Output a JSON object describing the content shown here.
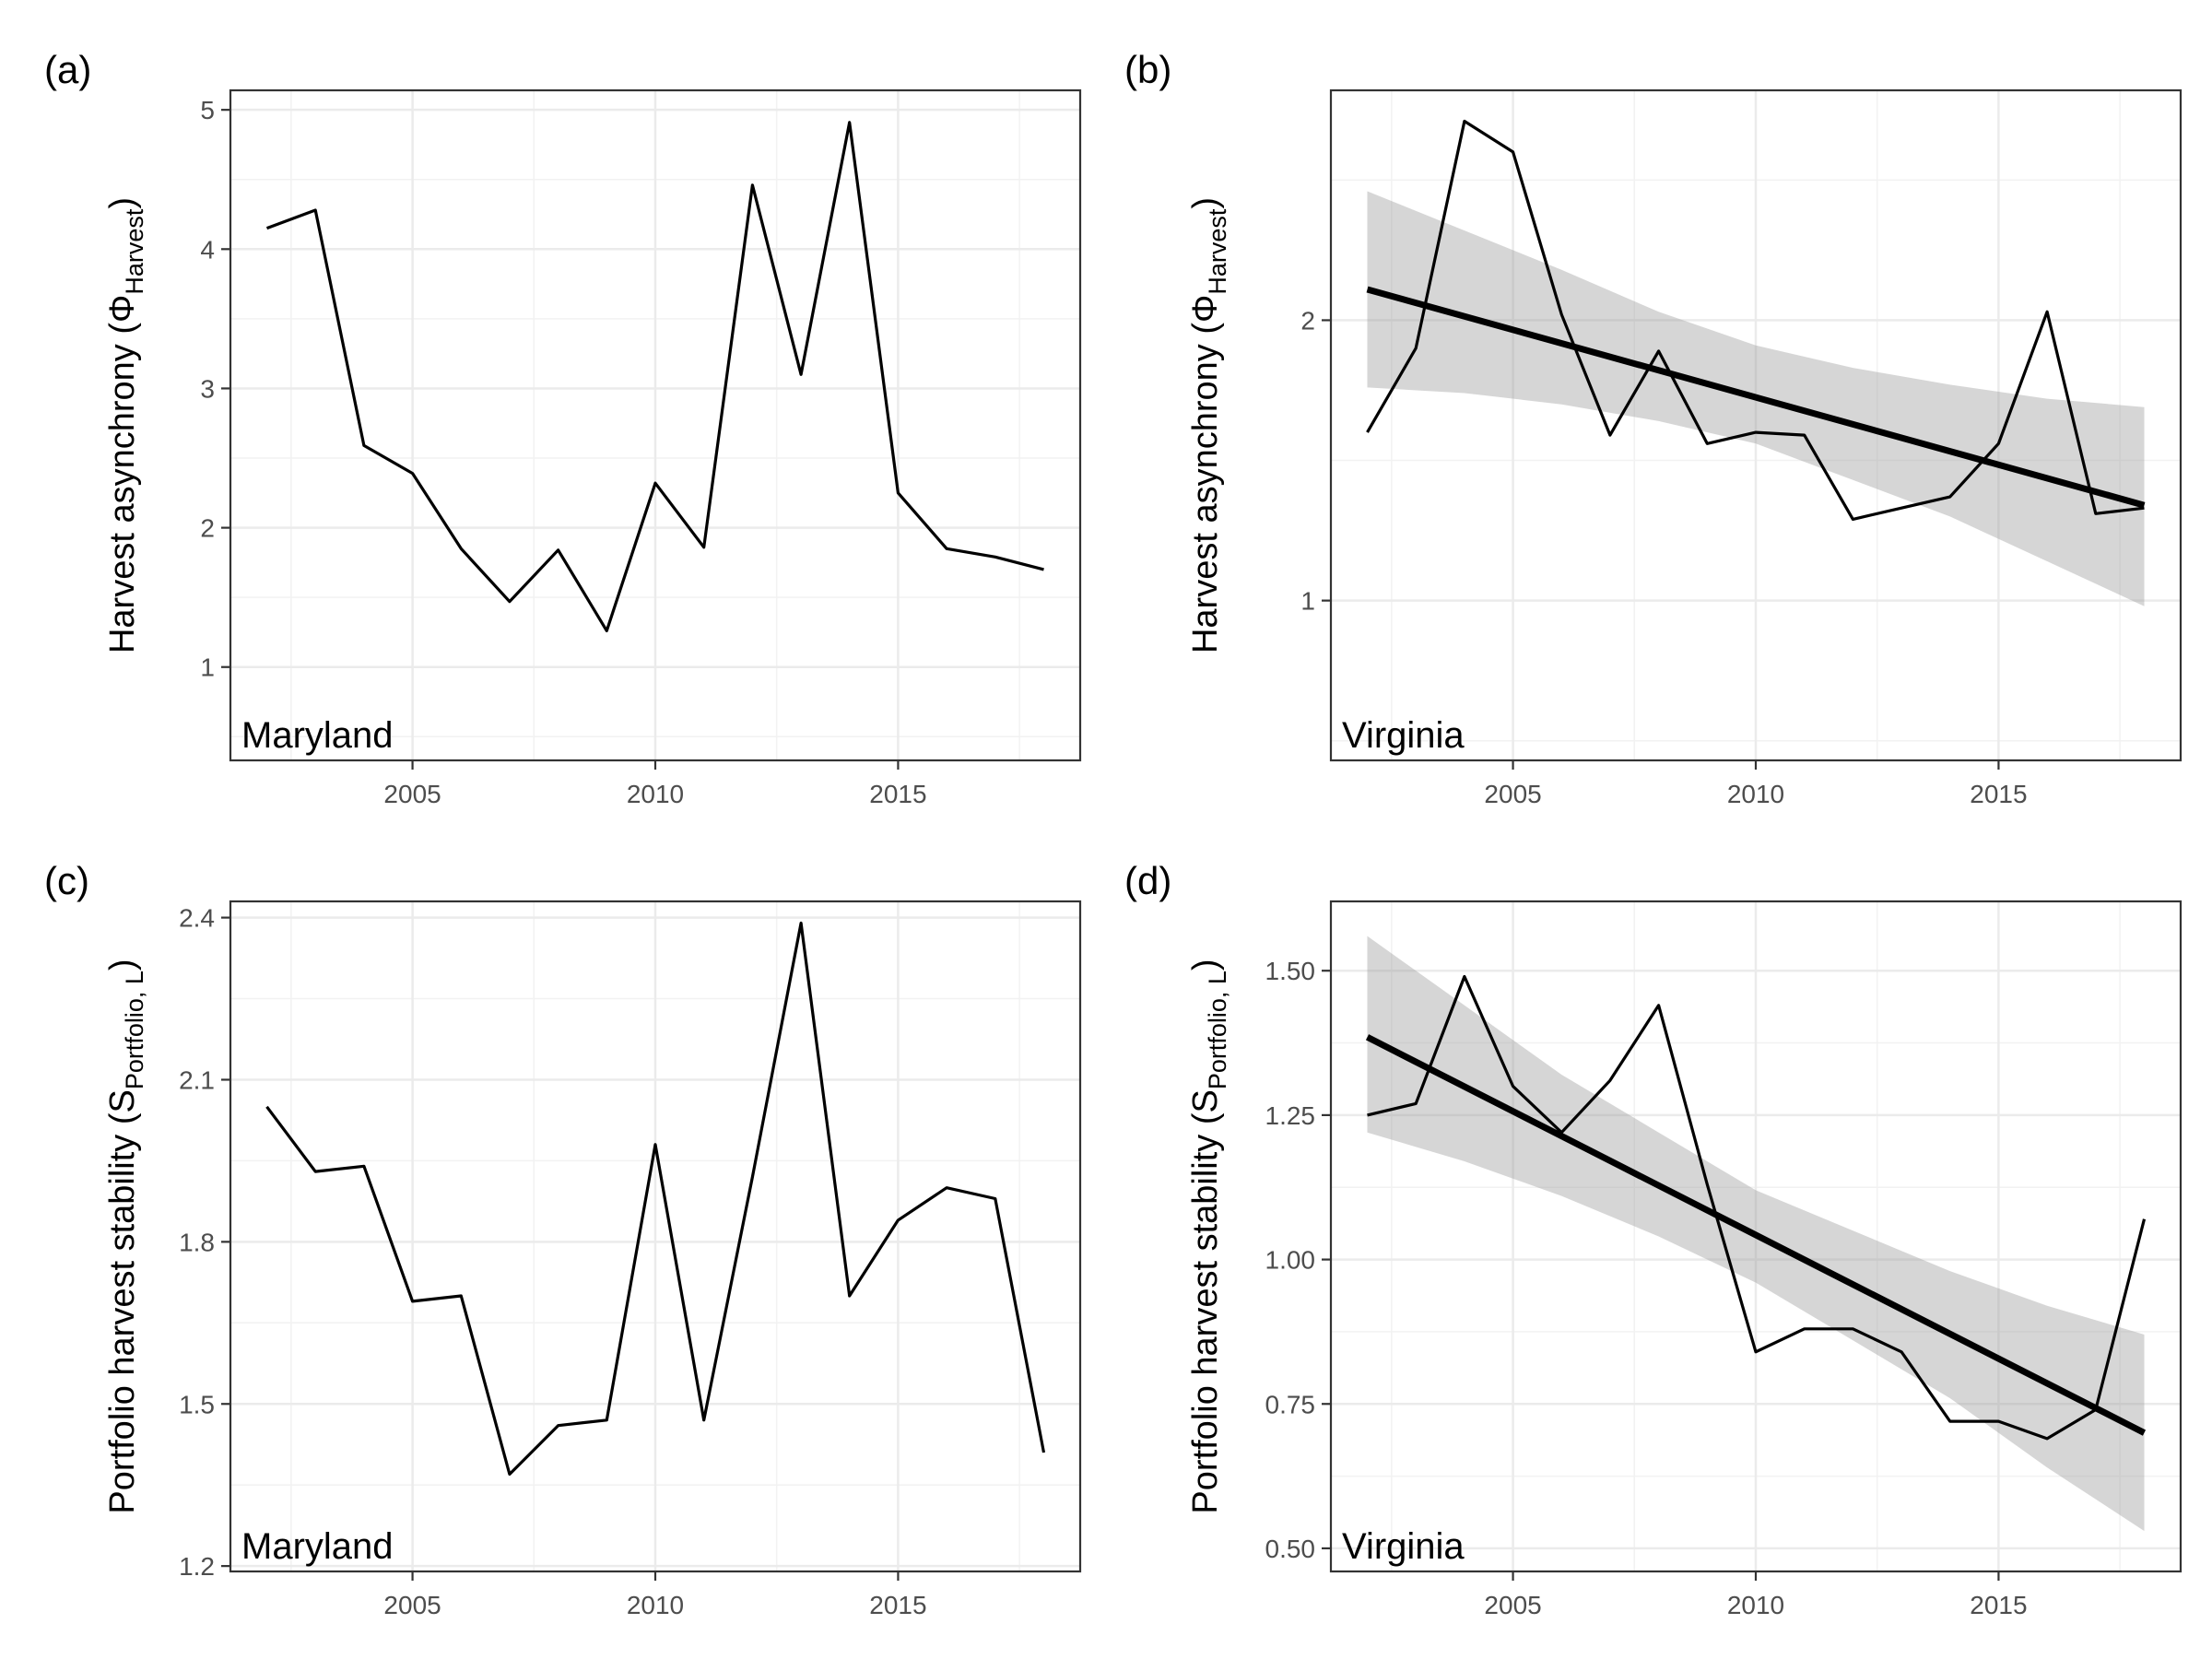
{
  "chart_data": [
    {
      "id": "a",
      "type": "line",
      "panel_label": "(a)",
      "region_label": "Maryland",
      "ylabel_main": "Harvest asynchrony (Φ",
      "ylabel_sub": "Harvest",
      "ylabel_end": ")",
      "x": [
        2002,
        2003,
        2004,
        2005,
        2006,
        2007,
        2008,
        2009,
        2010,
        2011,
        2012,
        2013,
        2014,
        2015,
        2016,
        2017,
        2018
      ],
      "series": [
        {
          "values": [
            4.15,
            4.28,
            2.59,
            2.39,
            1.85,
            1.47,
            1.84,
            1.26,
            2.32,
            1.86,
            4.46,
            3.1,
            4.91,
            2.25,
            1.85,
            1.79,
            1.7
          ]
        }
      ],
      "xlim": [
        2001.25,
        2018.75
      ],
      "ylim": [
        0.33,
        5.14
      ],
      "x_ticks": [
        2005,
        2010,
        2015
      ],
      "y_ticks": [
        1,
        2,
        3,
        4,
        5
      ],
      "x_tick_labels": [
        "2005",
        "2010",
        "2015"
      ],
      "y_tick_labels": [
        "1",
        "2",
        "3",
        "4",
        "5"
      ],
      "trend": null,
      "grid": true
    },
    {
      "id": "b",
      "type": "line",
      "panel_label": "(b)",
      "region_label": "Virginia",
      "ylabel_main": "Harvest asynchrony (Φ",
      "ylabel_sub": "Harvest",
      "ylabel_end": ")",
      "x": [
        2002,
        2003,
        2004,
        2005,
        2006,
        2007,
        2008,
        2009,
        2010,
        2011,
        2012,
        2013,
        2014,
        2015,
        2016,
        2017,
        2018
      ],
      "series": [
        {
          "values": [
            1.6,
            1.9,
            2.71,
            2.6,
            2.02,
            1.59,
            1.89,
            1.56,
            1.6,
            1.59,
            1.29,
            1.33,
            1.37,
            1.56,
            2.03,
            1.31,
            1.33
          ]
        }
      ],
      "xlim": [
        2001.25,
        2018.75
      ],
      "ylim": [
        0.43,
        2.82
      ],
      "x_ticks": [
        2005,
        2010,
        2015
      ],
      "y_ticks": [
        1,
        2
      ],
      "x_tick_labels": [
        "2005",
        "2010",
        "2015"
      ],
      "y_tick_labels": [
        "1",
        "2"
      ],
      "trend": {
        "start": [
          2002,
          2.11
        ],
        "end": [
          2018,
          1.34
        ],
        "band_x": [
          2002,
          2004,
          2006,
          2008,
          2010,
          2012,
          2014,
          2016,
          2018
        ],
        "band_upper": [
          2.46,
          2.32,
          2.18,
          2.03,
          1.91,
          1.83,
          1.77,
          1.72,
          1.69
        ],
        "band_lower": [
          1.76,
          1.74,
          1.7,
          1.64,
          1.56,
          1.43,
          1.3,
          1.14,
          0.98
        ]
      },
      "grid": true
    },
    {
      "id": "c",
      "type": "line",
      "panel_label": "(c)",
      "region_label": "Maryland",
      "ylabel_main": "Portfolio harvest stability (S",
      "ylabel_sub": "Portfolio, L",
      "ylabel_end": ")",
      "x": [
        2002,
        2003,
        2004,
        2005,
        2006,
        2007,
        2008,
        2009,
        2010,
        2011,
        2012,
        2013,
        2014,
        2015,
        2016,
        2017,
        2018
      ],
      "series": [
        {
          "values": [
            2.05,
            1.93,
            1.94,
            1.69,
            1.7,
            1.37,
            1.46,
            1.47,
            1.98,
            1.47,
            1.92,
            2.39,
            1.7,
            1.84,
            1.9,
            1.88,
            1.41
          ]
        }
      ],
      "xlim": [
        2001.25,
        2018.75
      ],
      "ylim": [
        1.19,
        2.43
      ],
      "x_ticks": [
        2005,
        2010,
        2015
      ],
      "y_ticks": [
        1.2,
        1.5,
        1.8,
        2.1,
        2.4
      ],
      "x_tick_labels": [
        "2005",
        "2010",
        "2015"
      ],
      "y_tick_labels": [
        "1.2",
        "1.5",
        "1.8",
        "2.1",
        "2.4"
      ],
      "trend": null,
      "grid": true
    },
    {
      "id": "d",
      "type": "line",
      "panel_label": "(d)",
      "region_label": "Virginia",
      "ylabel_main": "Portfolio harvest stability (S",
      "ylabel_sub": "Portfolio, L",
      "ylabel_end": ")",
      "x": [
        2002,
        2003,
        2004,
        2005,
        2006,
        2007,
        2008,
        2009,
        2010,
        2011,
        2012,
        2013,
        2014,
        2015,
        2016,
        2017,
        2018
      ],
      "series": [
        {
          "values": [
            1.25,
            1.27,
            1.49,
            1.3,
            1.22,
            1.31,
            1.44,
            1.13,
            0.84,
            0.88,
            0.88,
            0.84,
            0.72,
            0.72,
            0.69,
            0.74,
            1.07
          ]
        }
      ],
      "xlim": [
        2001.25,
        2018.75
      ],
      "ylim": [
        0.46,
        1.62
      ],
      "x_ticks": [
        2005,
        2010,
        2015
      ],
      "y_ticks": [
        0.5,
        0.75,
        1.0,
        1.25,
        1.5
      ],
      "x_tick_labels": [
        "2005",
        "2010",
        "2015"
      ],
      "y_tick_labels": [
        "0.50",
        "0.75",
        "1.00",
        "1.25",
        "1.50"
      ],
      "trend": {
        "start": [
          2002,
          1.385
        ],
        "end": [
          2018,
          0.7
        ],
        "band_x": [
          2002,
          2004,
          2006,
          2008,
          2010,
          2012,
          2014,
          2016,
          2018
        ],
        "band_upper": [
          1.56,
          1.44,
          1.32,
          1.22,
          1.12,
          1.05,
          0.98,
          0.92,
          0.87
        ],
        "band_lower": [
          1.22,
          1.17,
          1.11,
          1.04,
          0.96,
          0.86,
          0.76,
          0.64,
          0.53
        ]
      },
      "grid": true
    }
  ]
}
